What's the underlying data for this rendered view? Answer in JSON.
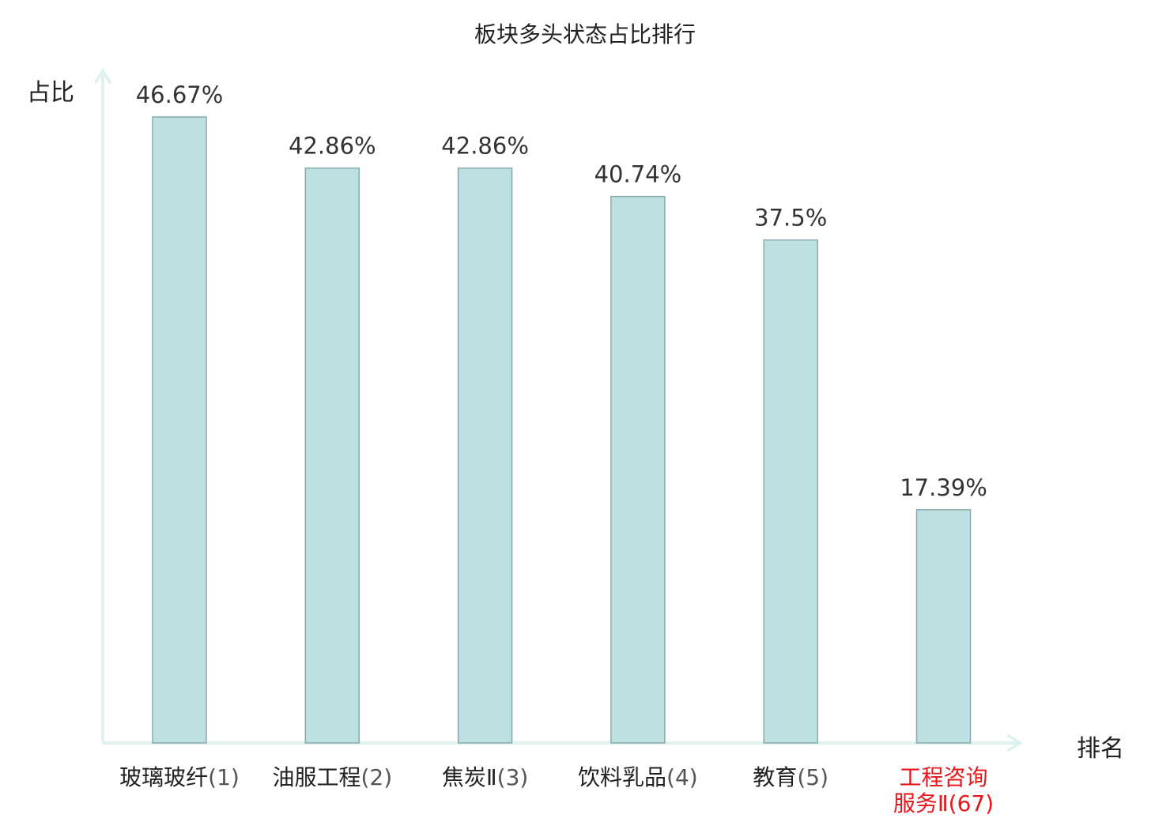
{
  "chart_data": {
    "type": "bar",
    "title": "板块多头状态占比排行",
    "xlabel": "排名",
    "ylabel": "占比",
    "categories": [
      {
        "name": "玻璃玻纤",
        "rank": "(1)"
      },
      {
        "name": "油服工程",
        "rank": "(2)"
      },
      {
        "name": "焦炭Ⅱ",
        "rank": "(3)"
      },
      {
        "name": "饮料乳品",
        "rank": "(4)"
      },
      {
        "name": "教育",
        "rank": "(5)"
      },
      {
        "name": "工程咨询服务Ⅱ",
        "rank": "(67)",
        "line1": "工程咨询",
        "line2": "服务Ⅱ"
      }
    ],
    "values": [
      46.67,
      42.86,
      42.86,
      40.74,
      37.5,
      17.39
    ],
    "value_labels": [
      "46.67%",
      "42.86%",
      "42.86%",
      "40.74%",
      "37.5%",
      "17.39%"
    ],
    "ylim": [
      0,
      46.67
    ],
    "grid": false,
    "legend": "none",
    "highlight_index": 5,
    "colors": {
      "bar_fill": "#bde0e3",
      "bar_stroke": "#8aa9aa",
      "axis": "#e0f2ef",
      "highlight_text": "#e8161b",
      "text": "#222222",
      "value_text": "#333333"
    }
  }
}
